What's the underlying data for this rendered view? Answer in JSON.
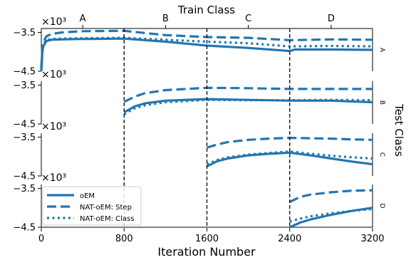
{
  "chart_data": {
    "type": "line",
    "top_title": "Train Class",
    "top_ticks": [
      "A",
      "B",
      "C",
      "D"
    ],
    "top_tick_x": [
      400,
      1200,
      2000,
      2800
    ],
    "xlabel": "Iteration Number",
    "x_ticks": [
      "0",
      "800",
      "1600",
      "2400",
      "3200"
    ],
    "x_tick_values": [
      0,
      800,
      1600,
      2400,
      3200
    ],
    "xlim": [
      0,
      3200
    ],
    "right_label": "Test Class",
    "multiplier_label": "×10³",
    "y_tick_labels": [
      "−3.5",
      "−4.5"
    ],
    "y_tick_values": [
      -3.5,
      -4.5
    ],
    "ylim": [
      -4.5,
      -3.4
    ],
    "vlines": [
      800,
      1600,
      2400
    ],
    "legend": {
      "placement": "lower-left",
      "entries": [
        {
          "label": "oEM",
          "style": "solid"
        },
        {
          "label": "NAT-oEM: Step",
          "style": "dashed"
        },
        {
          "label": "NAT-oEM: Class",
          "style": "dotted"
        }
      ]
    },
    "color": "#1f77b4",
    "panels": [
      {
        "name": "A",
        "series": [
          {
            "name": "oEM",
            "style": "solid",
            "points": [
              [
                0,
                -4.5
              ],
              [
                10,
                -4.0
              ],
              [
                20,
                -3.85
              ],
              [
                50,
                -3.72
              ],
              [
                100,
                -3.69
              ],
              [
                200,
                -3.68
              ],
              [
                400,
                -3.67
              ],
              [
                800,
                -3.66
              ],
              [
                1200,
                -3.74
              ],
              [
                1600,
                -3.84
              ],
              [
                2000,
                -3.9
              ],
              [
                2400,
                -3.98
              ],
              [
                2450,
                -3.94
              ],
              [
                2800,
                -3.94
              ],
              [
                3200,
                -3.95
              ]
            ]
          },
          {
            "name": "NAT-oEM: Step",
            "style": "dashed",
            "points": [
              [
                0,
                -4.4
              ],
              [
                10,
                -3.9
              ],
              [
                20,
                -3.75
              ],
              [
                50,
                -3.6
              ],
              [
                100,
                -3.54
              ],
              [
                200,
                -3.5
              ],
              [
                400,
                -3.47
              ],
              [
                800,
                -3.46
              ],
              [
                1200,
                -3.57
              ],
              [
                1600,
                -3.62
              ],
              [
                2000,
                -3.64
              ],
              [
                2400,
                -3.7
              ],
              [
                2800,
                -3.68
              ],
              [
                3200,
                -3.69
              ]
            ]
          },
          {
            "name": "NAT-oEM: Class",
            "style": "dotted",
            "points": [
              [
                0,
                -4.45
              ],
              [
                10,
                -3.95
              ],
              [
                20,
                -3.8
              ],
              [
                50,
                -3.7
              ],
              [
                100,
                -3.67
              ],
              [
                200,
                -3.66
              ],
              [
                400,
                -3.65
              ],
              [
                800,
                -3.64
              ],
              [
                1200,
                -3.69
              ],
              [
                1600,
                -3.74
              ],
              [
                2000,
                -3.78
              ],
              [
                2400,
                -3.86
              ],
              [
                2800,
                -3.85
              ],
              [
                3200,
                -3.86
              ]
            ]
          }
        ]
      },
      {
        "name": "B",
        "series": [
          {
            "name": "oEM",
            "style": "solid",
            "points": [
              [
                800,
                -4.2
              ],
              [
                900,
                -4.05
              ],
              [
                1000,
                -3.97
              ],
              [
                1200,
                -3.9
              ],
              [
                1600,
                -3.86
              ],
              [
                2000,
                -3.88
              ],
              [
                2400,
                -3.9
              ],
              [
                2800,
                -3.9
              ],
              [
                3200,
                -3.94
              ]
            ]
          },
          {
            "name": "NAT-oEM: Step",
            "style": "dashed",
            "points": [
              [
                800,
                -3.93
              ],
              [
                900,
                -3.8
              ],
              [
                1000,
                -3.71
              ],
              [
                1200,
                -3.63
              ],
              [
                1600,
                -3.57
              ],
              [
                2000,
                -3.58
              ],
              [
                2400,
                -3.6
              ],
              [
                2800,
                -3.6
              ],
              [
                3200,
                -3.6
              ]
            ]
          },
          {
            "name": "NAT-oEM: Class",
            "style": "dotted",
            "points": [
              [
                800,
                -4.25
              ],
              [
                900,
                -4.1
              ],
              [
                1000,
                -4.02
              ],
              [
                1200,
                -3.94
              ],
              [
                1600,
                -3.88
              ],
              [
                2000,
                -3.89
              ],
              [
                2400,
                -3.89
              ],
              [
                2800,
                -3.88
              ],
              [
                3200,
                -3.89
              ]
            ]
          }
        ]
      },
      {
        "name": "C",
        "series": [
          {
            "name": "oEM",
            "style": "solid",
            "points": [
              [
                1600,
                -4.25
              ],
              [
                1700,
                -4.12
              ],
              [
                1800,
                -4.05
              ],
              [
                2000,
                -3.97
              ],
              [
                2200,
                -3.93
              ],
              [
                2400,
                -3.9
              ],
              [
                2600,
                -3.97
              ],
              [
                2800,
                -4.05
              ],
              [
                3000,
                -4.13
              ],
              [
                3200,
                -4.2
              ]
            ]
          },
          {
            "name": "NAT-oEM: Step",
            "style": "dashed",
            "points": [
              [
                1600,
                -3.77
              ],
              [
                1700,
                -3.69
              ],
              [
                1800,
                -3.63
              ],
              [
                2000,
                -3.57
              ],
              [
                2200,
                -3.54
              ],
              [
                2400,
                -3.52
              ],
              [
                2600,
                -3.53
              ],
              [
                2800,
                -3.54
              ],
              [
                3000,
                -3.56
              ],
              [
                3200,
                -3.57
              ]
            ]
          },
          {
            "name": "NAT-oEM: Class",
            "style": "dotted",
            "points": [
              [
                1600,
                -4.2
              ],
              [
                1700,
                -4.09
              ],
              [
                1800,
                -4.02
              ],
              [
                2000,
                -3.95
              ],
              [
                2200,
                -3.91
              ],
              [
                2400,
                -3.87
              ],
              [
                2600,
                -3.93
              ],
              [
                2800,
                -3.98
              ],
              [
                3000,
                -4.02
              ],
              [
                3200,
                -4.05
              ]
            ]
          }
        ]
      },
      {
        "name": "D",
        "series": [
          {
            "name": "oEM",
            "style": "solid",
            "points": [
              [
                2400,
                -4.5
              ],
              [
                2500,
                -4.38
              ],
              [
                2600,
                -4.3
              ],
              [
                2800,
                -4.18
              ],
              [
                3000,
                -4.08
              ],
              [
                3200,
                -4.0
              ]
            ]
          },
          {
            "name": "NAT-oEM: Step",
            "style": "dashed",
            "points": [
              [
                2400,
                -3.85
              ],
              [
                2500,
                -3.72
              ],
              [
                2600,
                -3.66
              ],
              [
                2800,
                -3.6
              ],
              [
                3000,
                -3.56
              ],
              [
                3200,
                -3.55
              ]
            ]
          },
          {
            "name": "NAT-oEM: Class",
            "style": "dotted",
            "points": [
              [
                2400,
                -4.35
              ],
              [
                2500,
                -4.28
              ],
              [
                2600,
                -4.22
              ],
              [
                2800,
                -4.14
              ],
              [
                3000,
                -4.08
              ],
              [
                3200,
                -4.03
              ]
            ]
          }
        ]
      }
    ]
  }
}
